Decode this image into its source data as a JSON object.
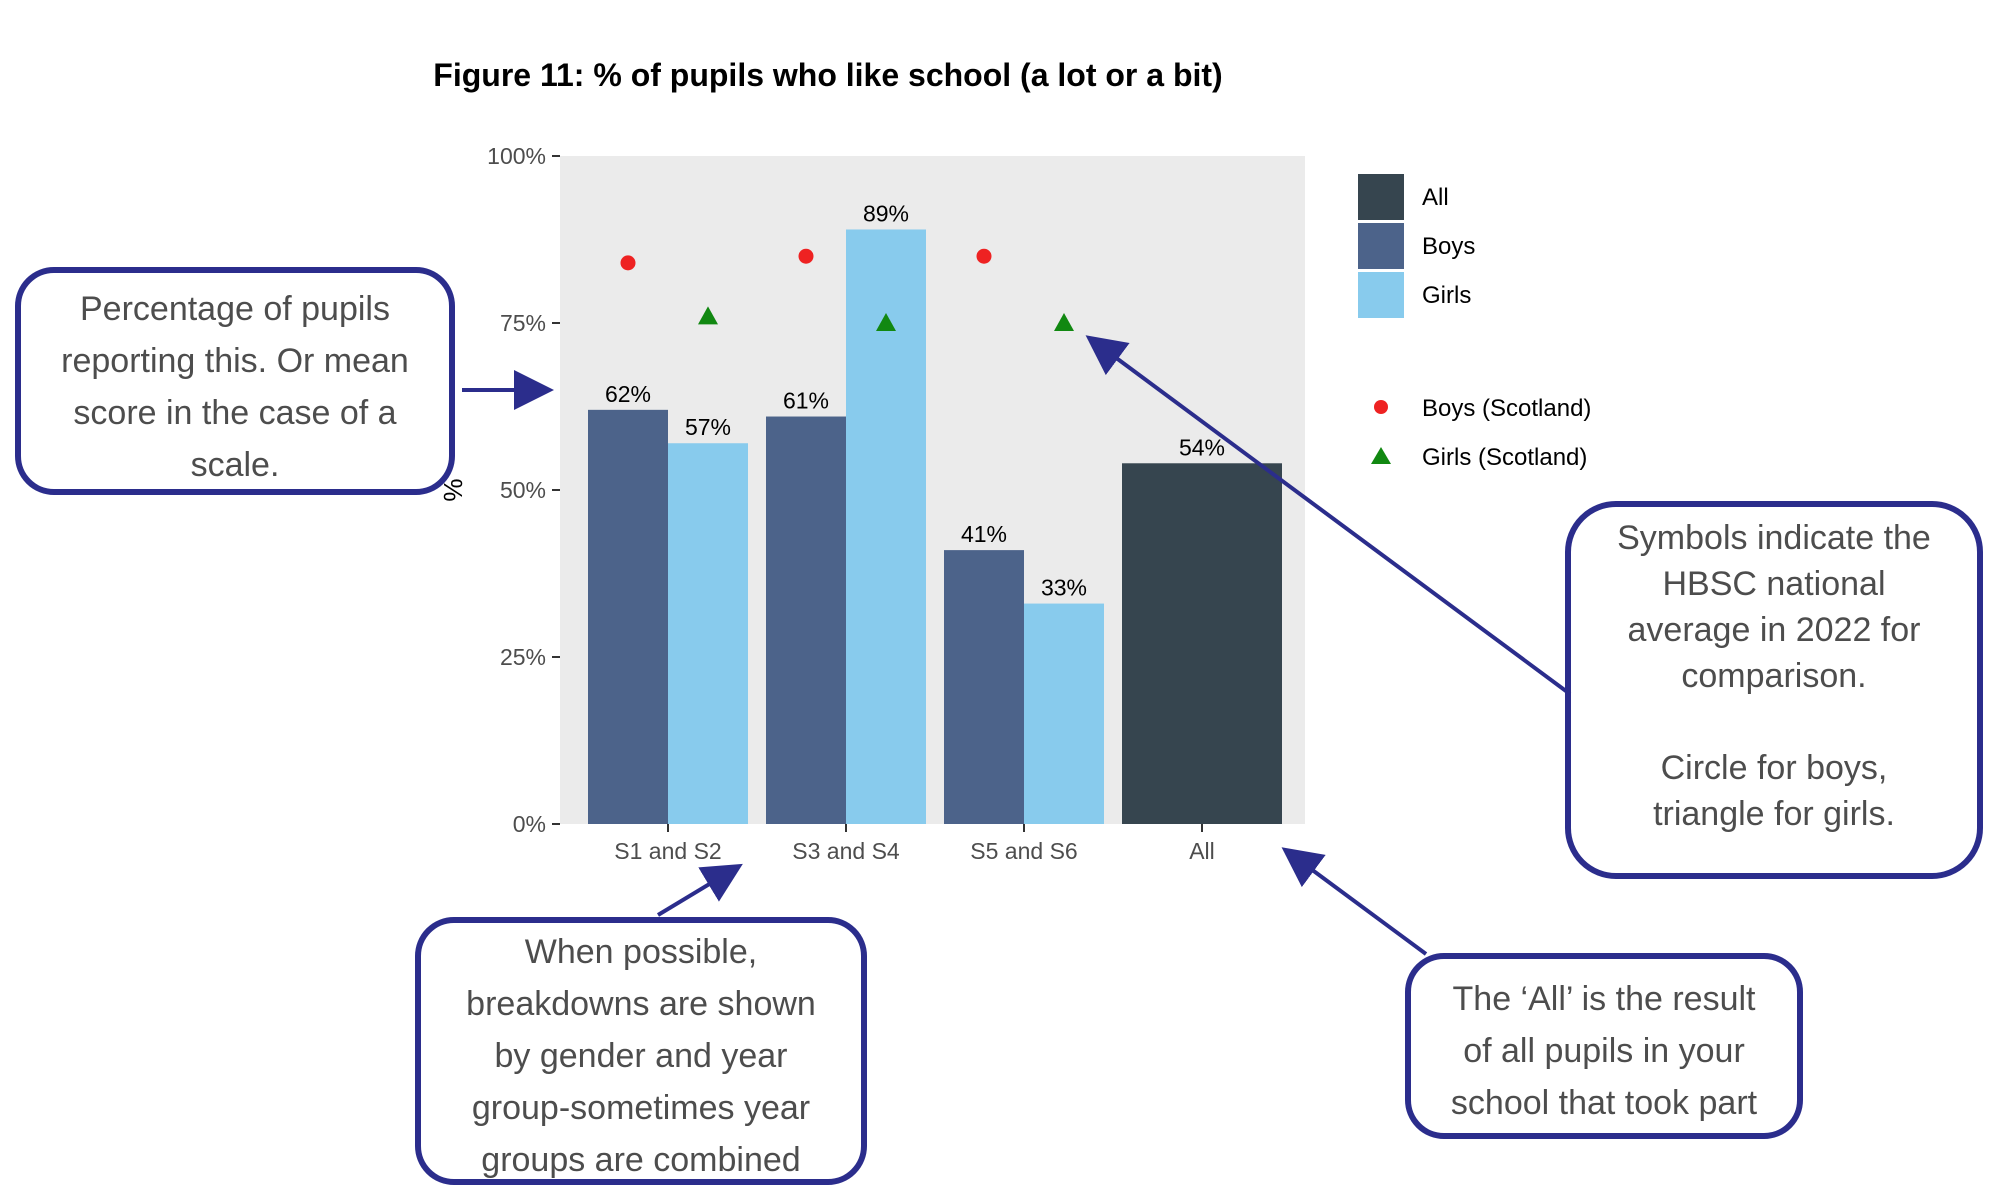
{
  "figure": {
    "title": "Figure 11: % of pupils who like school (a lot or a bit)"
  },
  "chart_data": {
    "type": "bar",
    "title": "Figure 11: % of pupils who like school (a lot or a bit)",
    "ylabel": "%",
    "xlabel": "",
    "ylim": [
      0,
      100
    ],
    "yticks": [
      "0%",
      "25%",
      "50%",
      "75%",
      "100%"
    ],
    "categories": [
      "S1 and S2",
      "S3 and S4",
      "S5 and S6",
      "All"
    ],
    "series": [
      {
        "name": "Boys",
        "color": "#4c638a",
        "values": [
          62,
          61,
          41,
          null
        ],
        "labels": [
          "62%",
          "61%",
          "41%",
          ""
        ]
      },
      {
        "name": "Girls",
        "color": "#88cbed",
        "values": [
          57,
          89,
          33,
          null
        ],
        "labels": [
          "57%",
          "89%",
          "33%",
          ""
        ]
      },
      {
        "name": "All",
        "color": "#36454f",
        "values": [
          null,
          null,
          null,
          54
        ],
        "labels": [
          "",
          "",
          "",
          "54%"
        ]
      }
    ],
    "markers": [
      {
        "name": "Boys (Scotland)",
        "shape": "circle",
        "color": "#ee2222",
        "values": [
          84,
          85,
          85,
          null
        ]
      },
      {
        "name": "Girls (Scotland)",
        "shape": "triangle",
        "color": "#118811",
        "values": [
          76,
          75,
          75,
          null
        ]
      }
    ],
    "legend": {
      "position": "right",
      "bar_items": [
        "All",
        "Boys",
        "Girls"
      ],
      "marker_items": [
        "Boys (Scotland)",
        "Girls (Scotland)"
      ]
    },
    "grid": false,
    "panel_background": "#ebebeb"
  },
  "callouts": {
    "percentage": [
      "Percentage of pupils",
      "reporting this. Or mean",
      "score in the case of a",
      "scale."
    ],
    "breakdown": [
      "When possible,",
      "breakdowns are shown",
      "by gender and year",
      "group-sometimes year",
      "groups are combined"
    ],
    "all_result": [
      "The ‘All’ is the result",
      "of all pupils in your",
      "school that took part"
    ],
    "symbols": [
      "Symbols indicate the",
      "HBSC national",
      "average in 2022 for",
      "comparison.",
      "",
      "Circle for boys,",
      "triangle for girls."
    ]
  },
  "colors": {
    "callout_border": "#2b2d8c",
    "callout_text": "#4d4d4d"
  }
}
